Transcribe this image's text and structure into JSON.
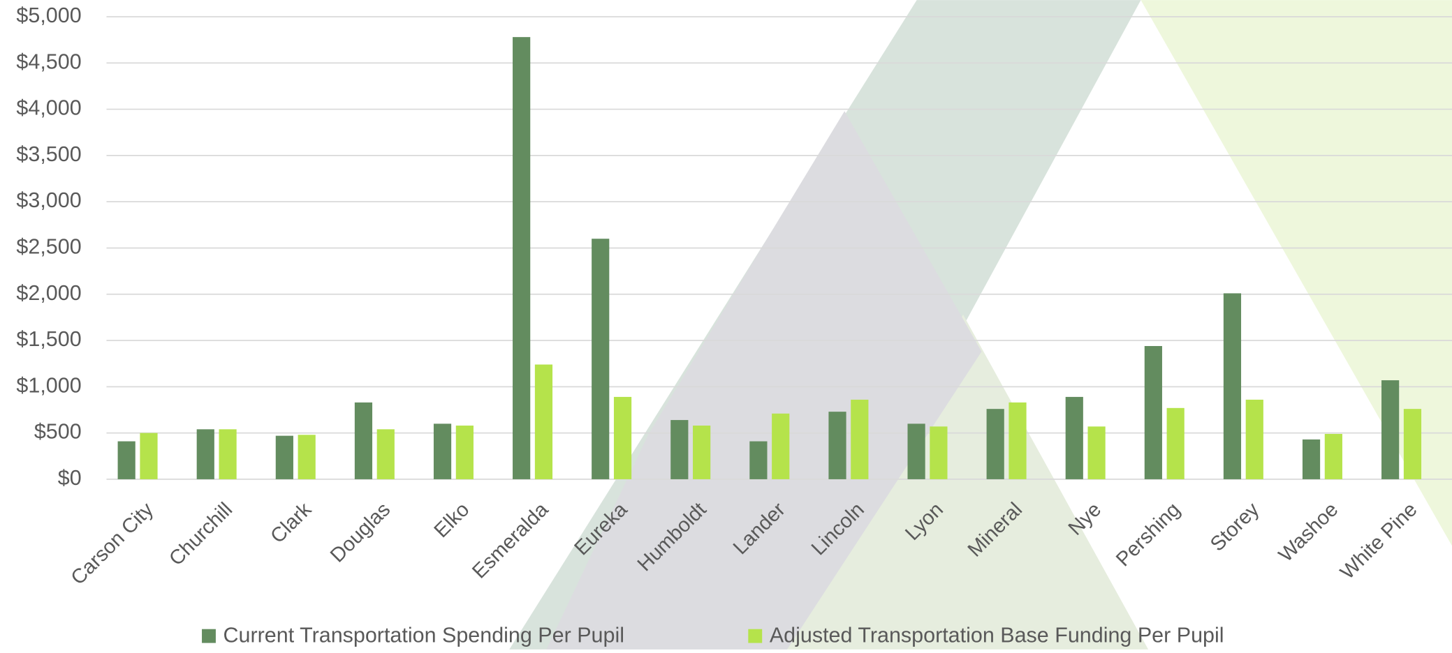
{
  "chart_data": {
    "type": "bar",
    "categories": [
      "Carson City",
      "Churchill",
      "Clark",
      "Douglas",
      "Elko",
      "Esmeralda",
      "Eureka",
      "Humboldt",
      "Lander",
      "Lincoln",
      "Lyon",
      "Mineral",
      "Nye",
      "Pershing",
      "Storey",
      "Washoe",
      "White Pine"
    ],
    "series": [
      {
        "name": "Current Transportation Spending Per Pupil",
        "color": "#638c5f",
        "values": [
          410,
          540,
          470,
          830,
          600,
          4780,
          2600,
          640,
          410,
          730,
          600,
          760,
          890,
          1440,
          2010,
          430,
          1070
        ]
      },
      {
        "name": "Adjusted Transportation Base Funding Per Pupil",
        "color": "#b5e34b",
        "values": [
          500,
          540,
          480,
          540,
          580,
          1240,
          890,
          580,
          710,
          860,
          570,
          830,
          570,
          770,
          860,
          490,
          760
        ]
      }
    ],
    "ylim": [
      0,
      5000
    ],
    "yticks": [
      {
        "value": 0,
        "label": "$0"
      },
      {
        "value": 500,
        "label": "$500"
      },
      {
        "value": 1000,
        "label": "$1,000"
      },
      {
        "value": 1500,
        "label": "$1,500"
      },
      {
        "value": 2000,
        "label": "$2,000"
      },
      {
        "value": 2500,
        "label": "$2,500"
      },
      {
        "value": 3000,
        "label": "$3,000"
      },
      {
        "value": 3500,
        "label": "$3,500"
      },
      {
        "value": 4000,
        "label": "$4,000"
      },
      {
        "value": 4500,
        "label": "$4,500"
      },
      {
        "value": 5000,
        "label": "$5,000"
      }
    ],
    "grid": true,
    "legend": "bottom"
  }
}
